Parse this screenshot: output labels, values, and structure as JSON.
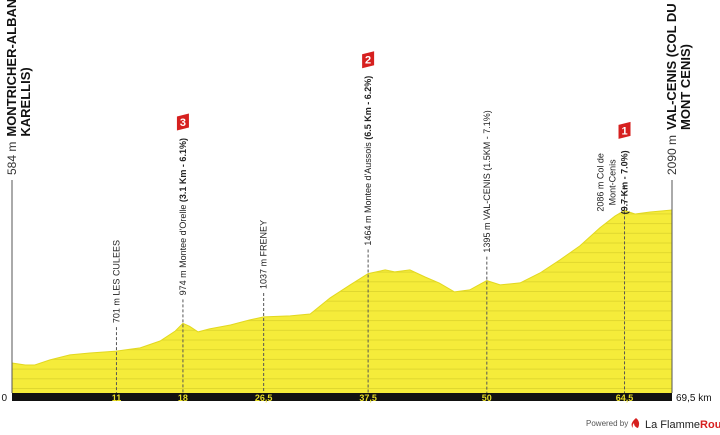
{
  "chart_data": {
    "type": "area",
    "start": {
      "elevation": "584 m",
      "name": [
        "MONTRICHER-ALBANNE (LES",
        "KARELLIS)"
      ]
    },
    "finish": {
      "elevation": "2090 m",
      "name": [
        "VAL-CENIS (COL DU",
        "MONT CENIS)"
      ]
    },
    "x": [
      0,
      1.4,
      2.4,
      4.0,
      6.1,
      8.2,
      11,
      13.5,
      15.6,
      17.2,
      18,
      18.7,
      19.6,
      20.8,
      23,
      25,
      26.5,
      29.3,
      31.4,
      33.5,
      35.6,
      37.5,
      39.3,
      40.3,
      41.9,
      43.5,
      45,
      46.6,
      48.2,
      50,
      51.4,
      53.5,
      55.6,
      57.7,
      59.8,
      61.9,
      63.5,
      64.5,
      65.6,
      67.2,
      69.5
    ],
    "values": [
      584,
      564,
      564,
      614,
      663,
      682,
      701,
      732,
      800,
      899,
      974,
      945,
      890,
      919,
      958,
      1007,
      1037,
      1047,
      1066,
      1224,
      1352,
      1464,
      1500,
      1480,
      1500,
      1430,
      1370,
      1283,
      1303,
      1395,
      1352,
      1372,
      1470,
      1598,
      1736,
      1913,
      2030,
      2086,
      2050,
      2070,
      2090
    ],
    "color": "#f5ec3a",
    "xlim": [
      0,
      69.5
    ],
    "xticks": [
      0,
      11,
      18,
      {
        "value": 26.5,
        "label": "26,5"
      },
      {
        "value": 37.5,
        "label": "37,5"
      },
      50,
      {
        "value": 64.5,
        "label": "64,5"
      },
      {
        "value": 69.5,
        "label": "69,5 km"
      }
    ],
    "waypoints": [
      {
        "lines": [
          "701 m LES CULEES"
        ]
      },
      {
        "lines": [
          "974 m Montee d'Orelle"
        ],
        "detail": "(3.1 Km - 6.1%)",
        "category": "3"
      },
      {
        "lines": [
          "1037 m FRENEY"
        ]
      },
      {
        "lines": [
          "1464 m Montee d'Aussois"
        ],
        "detail": "(6.5 Km - 6.2%)",
        "category": "2"
      },
      {
        "lines": [
          "1395 m VAL-CENIS (1.5KM - 7.1%)"
        ]
      },
      {
        "lines": [
          "2086 m Col de",
          "Mont-Cenis"
        ],
        "detail": "(9.7 Km - 7.0%)",
        "category": "1"
      }
    ]
  },
  "footer": {
    "powered": "Powered by",
    "brand": "La Flamme",
    "brand_strong": "Rouge"
  }
}
